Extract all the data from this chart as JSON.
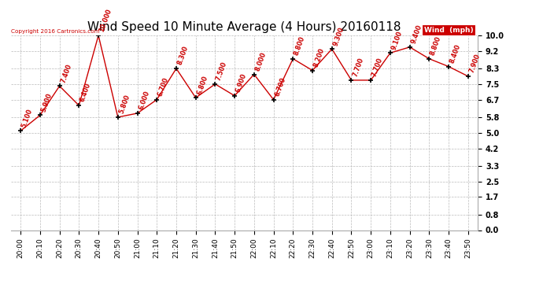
{
  "title": "Wind Speed 10 Minute Average (4 Hours) 20160118",
  "copyright_text": "Copyright 2016 Cartronics.com",
  "background_color": "#ffffff",
  "plot_bg_color": "#ffffff",
  "grid_color": "#bbbbbb",
  "line_color": "#cc0000",
  "marker_color": "#000000",
  "label_color": "#cc0000",
  "legend_text": "Wind  (mph)",
  "x_labels": [
    "20:00",
    "20:10",
    "20:20",
    "20:30",
    "20:40",
    "20:50",
    "21:00",
    "21:10",
    "21:20",
    "21:30",
    "21:40",
    "21:50",
    "22:00",
    "22:10",
    "22:20",
    "22:30",
    "22:40",
    "22:50",
    "23:00",
    "23:10",
    "23:20",
    "23:30",
    "23:40",
    "23:50"
  ],
  "y_values": [
    5.1,
    5.9,
    7.4,
    6.4,
    10.0,
    5.8,
    6.0,
    6.7,
    8.3,
    6.8,
    7.5,
    6.9,
    8.0,
    6.7,
    8.8,
    8.2,
    9.3,
    7.7,
    7.7,
    9.1,
    9.4,
    8.8,
    8.4,
    7.9
  ],
  "y_labels": [
    "5.100",
    "5.900",
    "7.400",
    "6.400",
    "10.000",
    "5.800",
    "6.000",
    "6.700",
    "8.300",
    "6.800",
    "7.500",
    "6.900",
    "8.000",
    "6.700",
    "8.800",
    "8.200",
    "9.300",
    "7.700",
    "7.700",
    "9.100",
    "9.400",
    "8.800",
    "8.400",
    "7.900"
  ],
  "yticks": [
    0.0,
    0.8,
    1.7,
    2.5,
    3.3,
    4.2,
    5.0,
    5.8,
    6.7,
    7.5,
    8.3,
    9.2,
    10.0
  ],
  "ylim": [
    0.0,
    10.0
  ],
  "title_fontsize": 11,
  "tick_fontsize": 7,
  "xlabel_fontsize": 6.5,
  "label_fontsize": 5.8
}
